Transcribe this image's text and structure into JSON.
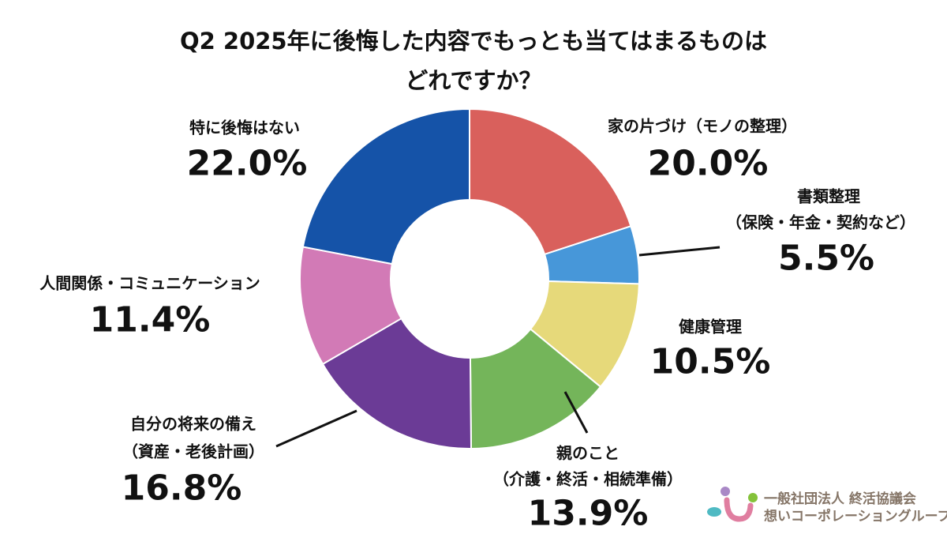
{
  "chart_data": {
    "type": "pie",
    "donut": true,
    "title": [
      "Q2 2025年に後悔した内容でもっとも当てはまるものは",
      "どれですか？"
    ],
    "start": "top",
    "direction": "clockwise",
    "slices": [
      {
        "label": [
          "家の片づけ（モノの整理）"
        ],
        "value": 20.0,
        "display": "20.0%",
        "color": "#d9605c"
      },
      {
        "label": [
          "書類整理",
          "（保険・年金・契約など）"
        ],
        "value": 5.5,
        "display": "5.5%",
        "color": "#4797d9"
      },
      {
        "label": [
          "健康管理"
        ],
        "value": 10.5,
        "display": "10.5%",
        "color": "#e6d97a"
      },
      {
        "label": [
          "親のこと",
          "（介護・終活・相続準備）"
        ],
        "value": 13.9,
        "display": "13.9%",
        "color": "#74b55a"
      },
      {
        "label": [
          "自分の将来の備え",
          "（資産・老後計画）"
        ],
        "value": 16.8,
        "display": "16.8%",
        "color": "#6b3b96"
      },
      {
        "label": [
          "人間関係・コミュニケーション"
        ],
        "value": 11.4,
        "display": "11.4%",
        "color": "#d27ab6"
      },
      {
        "label": [
          "特に後悔はない"
        ],
        "value": 22.0,
        "display": "22.0%",
        "color": "#1553a8"
      }
    ]
  },
  "logo": {
    "line1": "一般社団法人 終活協議会",
    "line2": "想いコーポレーショングループ"
  }
}
